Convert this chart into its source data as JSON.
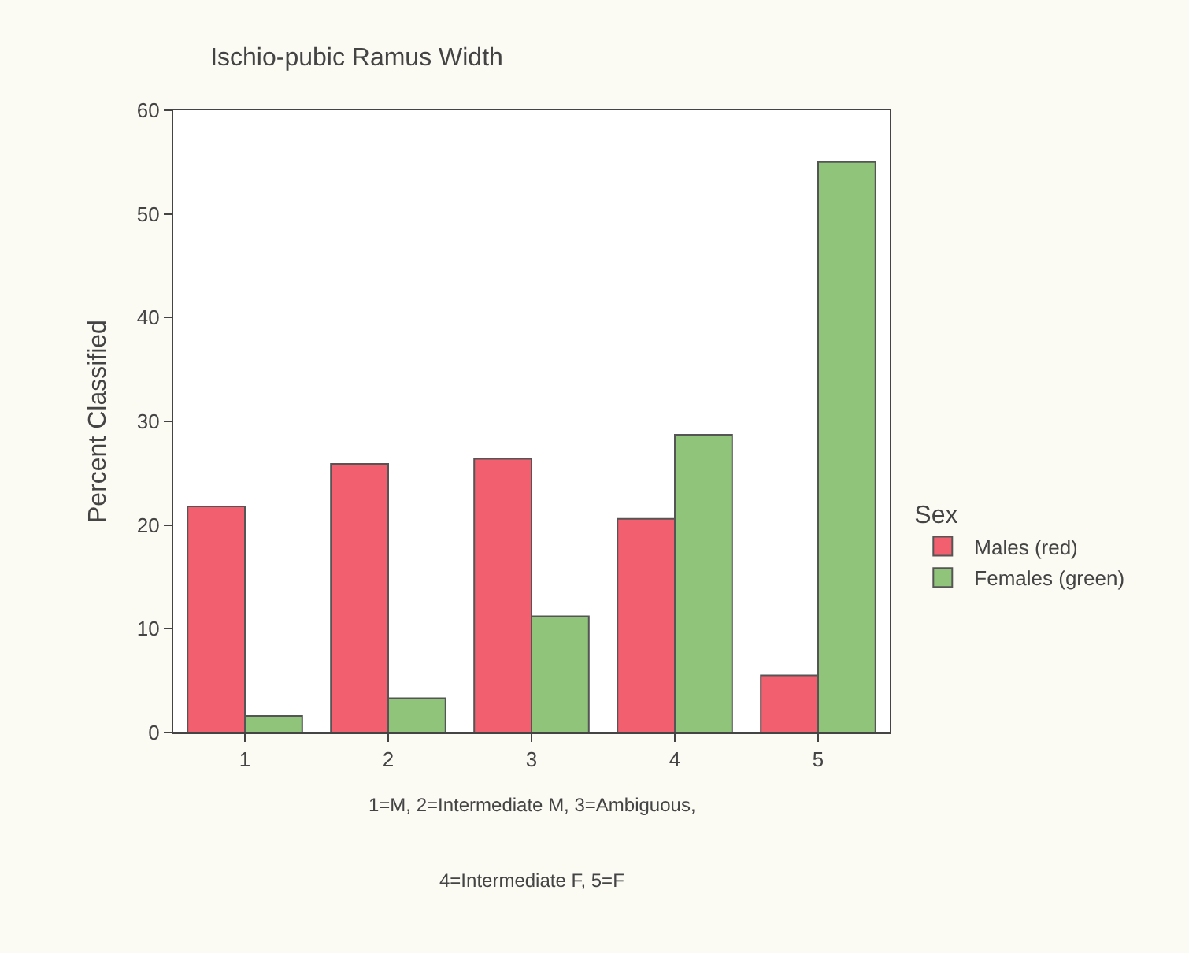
{
  "chart_data": {
    "type": "bar",
    "title": "Ischio-pubic Ramus Width",
    "ylabel": "Percent Classified",
    "categories": [
      "1",
      "2",
      "3",
      "4",
      "5"
    ],
    "series": [
      {
        "name": "Males (red)",
        "color": "#f2606f",
        "values": [
          21.8,
          25.9,
          26.4,
          20.6,
          5.5
        ]
      },
      {
        "name": "Females (green)",
        "color": "#8fc47a",
        "values": [
          1.6,
          3.3,
          11.2,
          28.7,
          55.0
        ]
      }
    ],
    "ylim": [
      0,
      60
    ],
    "yticks": [
      0,
      10,
      20,
      30,
      40,
      50,
      60
    ],
    "legend": "right",
    "legend_title": "Sex",
    "annotations": [
      "1=M, 2=Intermediate M, 3=Ambiguous,",
      "4=Intermediate F, 5=F"
    ]
  }
}
